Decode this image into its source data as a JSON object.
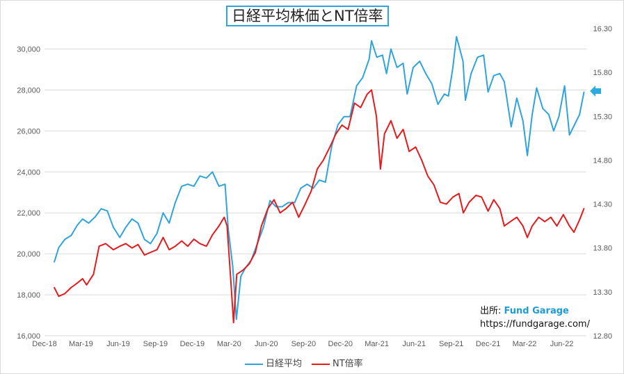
{
  "title": "日経平均株価とNT倍率",
  "source": {
    "label": "出所: ",
    "brand": "Fund Garage",
    "url": "https://fundgarage.com/"
  },
  "legend": [
    {
      "name": "日経平均",
      "color": "#2ea3dc"
    },
    {
      "name": "NT倍率",
      "color": "#e41a1c"
    }
  ],
  "chart_data": {
    "type": "line",
    "x_ticks": [
      "Dec-18",
      "Mar-19",
      "Jun-19",
      "Sep-19",
      "Dec-19",
      "Mar-20",
      "Jun-20",
      "Sep-20",
      "Dec-20",
      "Mar-21",
      "Jun-21",
      "Sep-21",
      "Dec-21",
      "Mar-22",
      "Jun-22"
    ],
    "y_left": {
      "min": 16000,
      "max": 31000,
      "ticks": [
        "16,000",
        "18,000",
        "20,000",
        "22,000",
        "24,000",
        "26,000",
        "28,000",
        "30,000"
      ]
    },
    "y_right": {
      "min": 12.8,
      "max": 16.3,
      "ticks": [
        "12.80",
        "13.30",
        "13.80",
        "14.30",
        "14.80",
        "15.30",
        "15.80",
        "16.30"
      ]
    },
    "grid": "horizontal",
    "legend_position": "bottom",
    "series": [
      {
        "name": "日経平均",
        "axis": "left",
        "color": "#2ea3dc",
        "points": [
          [
            "2018-12-25",
            19600
          ],
          [
            "2019-01-05",
            20300
          ],
          [
            "2019-01-20",
            20700
          ],
          [
            "2019-02-05",
            20900
          ],
          [
            "2019-02-20",
            21400
          ],
          [
            "2019-03-05",
            21700
          ],
          [
            "2019-03-20",
            21500
          ],
          [
            "2019-04-05",
            21800
          ],
          [
            "2019-04-20",
            22200
          ],
          [
            "2019-05-05",
            22100
          ],
          [
            "2019-05-20",
            21300
          ],
          [
            "2019-06-05",
            20800
          ],
          [
            "2019-06-20",
            21300
          ],
          [
            "2019-07-05",
            21700
          ],
          [
            "2019-07-20",
            21500
          ],
          [
            "2019-08-05",
            20700
          ],
          [
            "2019-08-20",
            20500
          ],
          [
            "2019-09-05",
            21000
          ],
          [
            "2019-09-20",
            22000
          ],
          [
            "2019-10-05",
            21500
          ],
          [
            "2019-10-20",
            22500
          ],
          [
            "2019-11-05",
            23300
          ],
          [
            "2019-11-20",
            23400
          ],
          [
            "2019-12-05",
            23300
          ],
          [
            "2019-12-20",
            23800
          ],
          [
            "2020-01-05",
            23700
          ],
          [
            "2020-01-20",
            24000
          ],
          [
            "2020-02-05",
            23300
          ],
          [
            "2020-02-20",
            23400
          ],
          [
            "2020-02-28",
            21200
          ],
          [
            "2020-03-10",
            19400
          ],
          [
            "2020-03-19",
            16800
          ],
          [
            "2020-03-30",
            18900
          ],
          [
            "2020-04-10",
            19300
          ],
          [
            "2020-04-25",
            19700
          ],
          [
            "2020-05-10",
            20500
          ],
          [
            "2020-05-25",
            21300
          ],
          [
            "2020-06-10",
            22600
          ],
          [
            "2020-06-25",
            22300
          ],
          [
            "2020-07-10",
            22300
          ],
          [
            "2020-07-25",
            22500
          ],
          [
            "2020-08-10",
            22500
          ],
          [
            "2020-08-25",
            23200
          ],
          [
            "2020-09-10",
            23400
          ],
          [
            "2020-09-25",
            23200
          ],
          [
            "2020-10-10",
            23600
          ],
          [
            "2020-10-25",
            23500
          ],
          [
            "2020-11-10",
            25300
          ],
          [
            "2020-11-25",
            26300
          ],
          [
            "2020-12-10",
            26700
          ],
          [
            "2020-12-25",
            26700
          ],
          [
            "2021-01-10",
            28200
          ],
          [
            "2021-01-25",
            28600
          ],
          [
            "2021-02-10",
            29500
          ],
          [
            "2021-02-16",
            30400
          ],
          [
            "2021-03-01",
            29600
          ],
          [
            "2021-03-15",
            29700
          ],
          [
            "2021-03-25",
            28800
          ],
          [
            "2021-04-05",
            30000
          ],
          [
            "2021-04-20",
            29100
          ],
          [
            "2021-05-05",
            29300
          ],
          [
            "2021-05-15",
            27800
          ],
          [
            "2021-05-30",
            29100
          ],
          [
            "2021-06-15",
            29400
          ],
          [
            "2021-06-30",
            28800
          ],
          [
            "2021-07-15",
            28300
          ],
          [
            "2021-07-30",
            27300
          ],
          [
            "2021-08-15",
            27800
          ],
          [
            "2021-08-25",
            27700
          ],
          [
            "2021-09-05",
            29100
          ],
          [
            "2021-09-14",
            30600
          ],
          [
            "2021-09-30",
            29400
          ],
          [
            "2021-10-06",
            27500
          ],
          [
            "2021-10-20",
            28800
          ],
          [
            "2021-11-05",
            29600
          ],
          [
            "2021-11-20",
            29700
          ],
          [
            "2021-12-01",
            27900
          ],
          [
            "2021-12-15",
            28700
          ],
          [
            "2021-12-30",
            28800
          ],
          [
            "2022-01-10",
            28400
          ],
          [
            "2022-01-27",
            26200
          ],
          [
            "2022-02-10",
            27600
          ],
          [
            "2022-02-25",
            26500
          ],
          [
            "2022-03-08",
            24800
          ],
          [
            "2022-03-20",
            26800
          ],
          [
            "2022-03-31",
            28100
          ],
          [
            "2022-04-15",
            27100
          ],
          [
            "2022-04-30",
            26800
          ],
          [
            "2022-05-12",
            26000
          ],
          [
            "2022-05-25",
            26700
          ],
          [
            "2022-06-08",
            28200
          ],
          [
            "2022-06-20",
            25800
          ],
          [
            "2022-07-05",
            26400
          ],
          [
            "2022-07-15",
            26800
          ],
          [
            "2022-07-26",
            27900
          ]
        ]
      },
      {
        "name": "NT倍率",
        "axis": "right",
        "color": "#e41a1c",
        "points": [
          [
            "2018-12-25",
            13.35
          ],
          [
            "2019-01-05",
            13.25
          ],
          [
            "2019-01-20",
            13.28
          ],
          [
            "2019-02-05",
            13.35
          ],
          [
            "2019-02-20",
            13.4
          ],
          [
            "2019-03-05",
            13.45
          ],
          [
            "2019-03-15",
            13.38
          ],
          [
            "2019-04-01",
            13.5
          ],
          [
            "2019-04-15",
            13.82
          ],
          [
            "2019-05-01",
            13.85
          ],
          [
            "2019-05-20",
            13.78
          ],
          [
            "2019-06-05",
            13.82
          ],
          [
            "2019-06-20",
            13.85
          ],
          [
            "2019-07-05",
            13.8
          ],
          [
            "2019-07-20",
            13.84
          ],
          [
            "2019-08-05",
            13.72
          ],
          [
            "2019-08-20",
            13.75
          ],
          [
            "2019-09-05",
            13.78
          ],
          [
            "2019-09-20",
            13.92
          ],
          [
            "2019-10-05",
            13.78
          ],
          [
            "2019-10-20",
            13.82
          ],
          [
            "2019-11-05",
            13.88
          ],
          [
            "2019-11-20",
            13.82
          ],
          [
            "2019-12-05",
            13.9
          ],
          [
            "2019-12-20",
            13.85
          ],
          [
            "2020-01-05",
            13.82
          ],
          [
            "2020-01-20",
            13.95
          ],
          [
            "2020-02-05",
            14.05
          ],
          [
            "2020-02-18",
            14.15
          ],
          [
            "2020-02-25",
            14.05
          ],
          [
            "2020-03-05",
            13.45
          ],
          [
            "2020-03-12",
            12.95
          ],
          [
            "2020-03-20",
            13.5
          ],
          [
            "2020-04-05",
            13.55
          ],
          [
            "2020-04-20",
            13.62
          ],
          [
            "2020-05-05",
            13.75
          ],
          [
            "2020-05-20",
            14.05
          ],
          [
            "2020-06-05",
            14.25
          ],
          [
            "2020-06-20",
            14.35
          ],
          [
            "2020-07-05",
            14.2
          ],
          [
            "2020-07-20",
            14.25
          ],
          [
            "2020-08-05",
            14.32
          ],
          [
            "2020-08-20",
            14.15
          ],
          [
            "2020-09-05",
            14.3
          ],
          [
            "2020-09-20",
            14.45
          ],
          [
            "2020-10-05",
            14.7
          ],
          [
            "2020-10-20",
            14.8
          ],
          [
            "2020-11-05",
            14.95
          ],
          [
            "2020-11-20",
            15.1
          ],
          [
            "2020-12-05",
            15.2
          ],
          [
            "2020-12-20",
            15.15
          ],
          [
            "2021-01-05",
            15.45
          ],
          [
            "2021-01-20",
            15.4
          ],
          [
            "2021-02-05",
            15.55
          ],
          [
            "2021-02-16",
            15.6
          ],
          [
            "2021-02-28",
            15.3
          ],
          [
            "2021-03-10",
            14.7
          ],
          [
            "2021-03-20",
            15.1
          ],
          [
            "2021-04-05",
            15.25
          ],
          [
            "2021-04-20",
            15.05
          ],
          [
            "2021-05-05",
            15.15
          ],
          [
            "2021-05-20",
            14.9
          ],
          [
            "2021-06-05",
            14.95
          ],
          [
            "2021-06-20",
            14.8
          ],
          [
            "2021-07-05",
            14.62
          ],
          [
            "2021-07-20",
            14.52
          ],
          [
            "2021-08-05",
            14.32
          ],
          [
            "2021-08-20",
            14.3
          ],
          [
            "2021-09-05",
            14.38
          ],
          [
            "2021-09-20",
            14.42
          ],
          [
            "2021-10-01",
            14.2
          ],
          [
            "2021-10-15",
            14.32
          ],
          [
            "2021-11-01",
            14.4
          ],
          [
            "2021-11-15",
            14.38
          ],
          [
            "2021-12-01",
            14.22
          ],
          [
            "2021-12-15",
            14.35
          ],
          [
            "2021-12-30",
            14.25
          ],
          [
            "2022-01-10",
            14.05
          ],
          [
            "2022-01-25",
            14.1
          ],
          [
            "2022-02-10",
            14.15
          ],
          [
            "2022-02-25",
            14.05
          ],
          [
            "2022-03-08",
            13.92
          ],
          [
            "2022-03-20",
            14.05
          ],
          [
            "2022-04-05",
            14.15
          ],
          [
            "2022-04-20",
            14.1
          ],
          [
            "2022-05-05",
            14.15
          ],
          [
            "2022-05-20",
            14.05
          ],
          [
            "2022-06-05",
            14.18
          ],
          [
            "2022-06-20",
            14.05
          ],
          [
            "2022-07-01",
            13.98
          ],
          [
            "2022-07-15",
            14.12
          ],
          [
            "2022-07-26",
            14.25
          ]
        ]
      }
    ]
  }
}
